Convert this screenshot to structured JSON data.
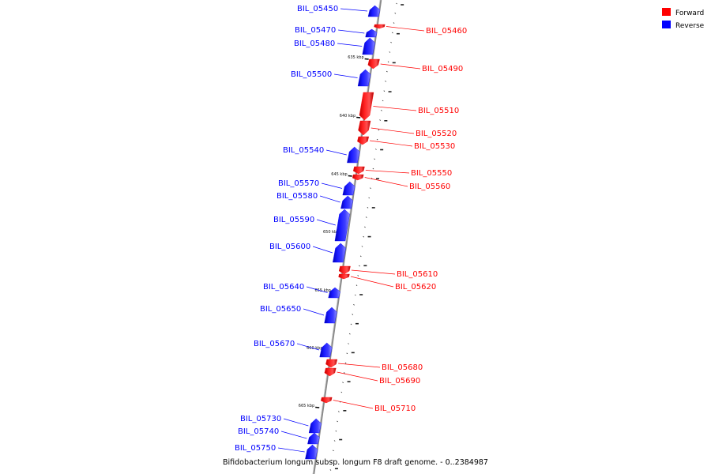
{
  "caption": "Bifidobacterium longum subsp. longum F8 draft genome. - 0..2384987",
  "legend": [
    {
      "label": "Forward",
      "color": "#ff0000"
    },
    {
      "label": "Reverse",
      "color": "#0000ff"
    }
  ],
  "colors": {
    "forward": "#ff0000",
    "reverse": "#0000ff",
    "axis": "#888888"
  },
  "kbp_marks": [
    {
      "label": "635 kbp",
      "kbp": 635
    },
    {
      "label": "640 kbp",
      "kbp": 640
    },
    {
      "label": "645 kbp",
      "kbp": 645
    },
    {
      "label": "650 kbp",
      "kbp": 650
    },
    {
      "label": "655 kbp",
      "kbp": 655
    },
    {
      "label": "660 kbp",
      "kbp": 660
    },
    {
      "label": "665 kbp",
      "kbp": 665
    }
  ],
  "genes": [
    {
      "name": "BIL_05450",
      "strand": "reverse"
    },
    {
      "name": "BIL_05460",
      "strand": "forward"
    },
    {
      "name": "BIL_05470",
      "strand": "reverse"
    },
    {
      "name": "BIL_05480",
      "strand": "reverse"
    },
    {
      "name": "BIL_05490",
      "strand": "forward"
    },
    {
      "name": "BIL_05500",
      "strand": "reverse"
    },
    {
      "name": "BIL_05510",
      "strand": "forward"
    },
    {
      "name": "BIL_05520",
      "strand": "forward"
    },
    {
      "name": "BIL_05530",
      "strand": "forward"
    },
    {
      "name": "BIL_05540",
      "strand": "reverse"
    },
    {
      "name": "BIL_05550",
      "strand": "forward"
    },
    {
      "name": "BIL_05560",
      "strand": "forward"
    },
    {
      "name": "BIL_05570",
      "strand": "reverse"
    },
    {
      "name": "BIL_05580",
      "strand": "reverse"
    },
    {
      "name": "BIL_05590",
      "strand": "reverse"
    },
    {
      "name": "BIL_05600",
      "strand": "reverse"
    },
    {
      "name": "BIL_05610",
      "strand": "forward"
    },
    {
      "name": "BIL_05620",
      "strand": "forward"
    },
    {
      "name": "BIL_05640",
      "strand": "reverse"
    },
    {
      "name": "BIL_05650",
      "strand": "reverse"
    },
    {
      "name": "BIL_05670",
      "strand": "reverse"
    },
    {
      "name": "BIL_05680",
      "strand": "forward"
    },
    {
      "name": "BIL_05690",
      "strand": "forward"
    },
    {
      "name": "BIL_05710",
      "strand": "forward"
    },
    {
      "name": "BIL_05730",
      "strand": "reverse"
    },
    {
      "name": "BIL_05740",
      "strand": "reverse"
    },
    {
      "name": "BIL_05750",
      "strand": "reverse"
    }
  ]
}
